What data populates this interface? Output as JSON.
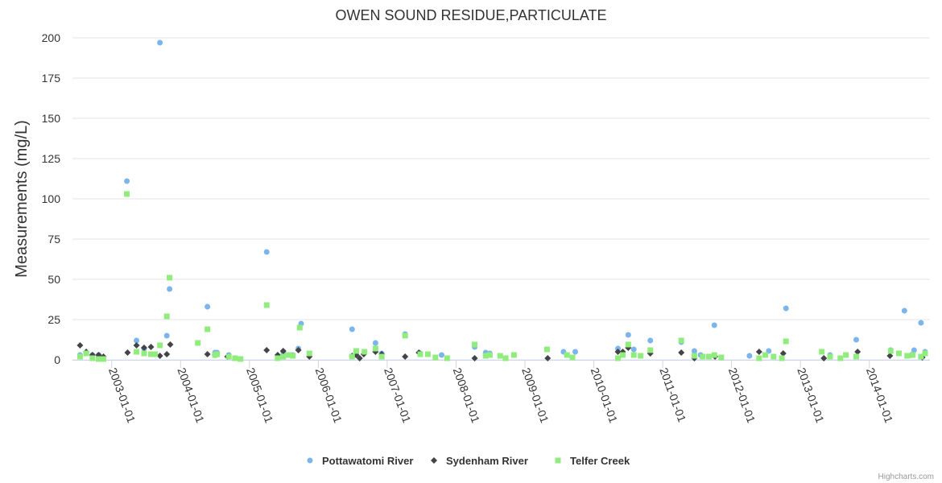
{
  "chart_data": {
    "type": "scatter",
    "title": "OWEN SOUND RESIDUE,PARTICULATE",
    "xlabel": "",
    "ylabel": "Measurements (mg/L)",
    "x_units": "decimal year",
    "xlim": [
      2002.43,
      2014.88
    ],
    "ylim": [
      0,
      200
    ],
    "yticks": [
      0,
      25,
      50,
      75,
      100,
      125,
      150,
      175,
      200
    ],
    "xticks": [
      {
        "value": 2003,
        "label": "2003-01-01"
      },
      {
        "value": 2004,
        "label": "2004-01-01"
      },
      {
        "value": 2005,
        "label": "2005-01-01"
      },
      {
        "value": 2006,
        "label": "2006-01-01"
      },
      {
        "value": 2007,
        "label": "2007-01-01"
      },
      {
        "value": 2008,
        "label": "2008-01-01"
      },
      {
        "value": 2009,
        "label": "2009-01-01"
      },
      {
        "value": 2010,
        "label": "2010-01-01"
      },
      {
        "value": 2011,
        "label": "2011-01-01"
      },
      {
        "value": 2012,
        "label": "2012-01-01"
      },
      {
        "value": 2013,
        "label": "2013-01-01"
      },
      {
        "value": 2014,
        "label": "2014-01-01"
      }
    ],
    "grid": true,
    "legend_position": "bottom-center",
    "series": [
      {
        "name": "Pottawatomi River",
        "color": "#7cb5ec",
        "marker": "circle",
        "points": [
          [
            2002.54,
            3
          ],
          [
            2002.63,
            4
          ],
          [
            2002.72,
            3
          ],
          [
            2002.81,
            3
          ],
          [
            2003.22,
            111
          ],
          [
            2003.36,
            12
          ],
          [
            2003.47,
            7
          ],
          [
            2003.7,
            197
          ],
          [
            2003.8,
            15
          ],
          [
            2003.84,
            44
          ],
          [
            2004.39,
            33
          ],
          [
            2004.5,
            4.5
          ],
          [
            2004.53,
            4.5
          ],
          [
            2004.7,
            3
          ],
          [
            2005.25,
            67
          ],
          [
            2005.49,
            5
          ],
          [
            2005.63,
            3
          ],
          [
            2005.71,
            7
          ],
          [
            2005.75,
            22.5
          ],
          [
            2006.49,
            19
          ],
          [
            2006.55,
            3
          ],
          [
            2006.83,
            10.5
          ],
          [
            2006.92,
            4
          ],
          [
            2007.26,
            16
          ],
          [
            2007.48,
            4
          ],
          [
            2007.79,
            3
          ],
          [
            2008.27,
            8
          ],
          [
            2008.43,
            4.5
          ],
          [
            2008.49,
            4
          ],
          [
            2009.56,
            5
          ],
          [
            2009.73,
            5
          ],
          [
            2010.35,
            7
          ],
          [
            2010.5,
            15.5
          ],
          [
            2010.58,
            6.5
          ],
          [
            2010.82,
            12
          ],
          [
            2011.27,
            11
          ],
          [
            2011.46,
            5.5
          ],
          [
            2011.55,
            3
          ],
          [
            2011.75,
            21.5
          ],
          [
            2012.26,
            2.5
          ],
          [
            2012.54,
            5.5
          ],
          [
            2012.79,
            32
          ],
          [
            2013.43,
            3
          ],
          [
            2013.81,
            12.5
          ],
          [
            2014.31,
            6
          ],
          [
            2014.51,
            30.5
          ],
          [
            2014.65,
            6
          ],
          [
            2014.75,
            23
          ],
          [
            2014.81,
            5
          ]
        ]
      },
      {
        "name": "Sydenham River",
        "color": "#434348",
        "marker": "diamond",
        "points": [
          [
            2002.54,
            9
          ],
          [
            2002.63,
            5
          ],
          [
            2002.72,
            3
          ],
          [
            2002.81,
            3
          ],
          [
            2002.88,
            2
          ],
          [
            2003.23,
            4.5
          ],
          [
            2003.36,
            9
          ],
          [
            2003.47,
            7.5
          ],
          [
            2003.57,
            8
          ],
          [
            2003.7,
            2.5
          ],
          [
            2003.8,
            3.5
          ],
          [
            2003.85,
            9.5
          ],
          [
            2004.39,
            3.5
          ],
          [
            2004.5,
            3
          ],
          [
            2004.68,
            2
          ],
          [
            2005.25,
            6
          ],
          [
            2005.41,
            3
          ],
          [
            2005.49,
            5.5
          ],
          [
            2005.71,
            6
          ],
          [
            2005.87,
            2
          ],
          [
            2006.49,
            2.5
          ],
          [
            2006.55,
            3
          ],
          [
            2006.6,
            1
          ],
          [
            2006.66,
            3.5
          ],
          [
            2006.83,
            5
          ],
          [
            2006.92,
            3.5
          ],
          [
            2007.26,
            2
          ],
          [
            2007.46,
            4.5
          ],
          [
            2008.27,
            1
          ],
          [
            2009.33,
            1
          ],
          [
            2010.35,
            5
          ],
          [
            2010.42,
            5
          ],
          [
            2010.5,
            7.5
          ],
          [
            2010.82,
            4
          ],
          [
            2011.27,
            4.5
          ],
          [
            2011.46,
            1
          ],
          [
            2011.76,
            2
          ],
          [
            2012.4,
            5
          ],
          [
            2012.75,
            4
          ],
          [
            2013.34,
            1
          ],
          [
            2013.83,
            5
          ],
          [
            2014.3,
            2.5
          ],
          [
            2014.61,
            3
          ],
          [
            2014.77,
            1.5
          ]
        ]
      },
      {
        "name": "Telfer Creek",
        "color": "#90ed7d",
        "marker": "square",
        "points": [
          [
            2002.54,
            2
          ],
          [
            2002.63,
            4
          ],
          [
            2002.72,
            1
          ],
          [
            2002.81,
            0.5
          ],
          [
            2002.88,
            0.5
          ],
          [
            2003.22,
            103
          ],
          [
            2003.36,
            5
          ],
          [
            2003.47,
            4
          ],
          [
            2003.57,
            3.5
          ],
          [
            2003.63,
            3.5
          ],
          [
            2003.7,
            9
          ],
          [
            2003.8,
            27
          ],
          [
            2003.84,
            51
          ],
          [
            2004.25,
            10.5
          ],
          [
            2004.39,
            19
          ],
          [
            2004.5,
            3
          ],
          [
            2004.53,
            3.5
          ],
          [
            2004.7,
            2
          ],
          [
            2004.79,
            1
          ],
          [
            2004.87,
            0.5
          ],
          [
            2005.25,
            34
          ],
          [
            2005.41,
            1
          ],
          [
            2005.49,
            2
          ],
          [
            2005.57,
            3
          ],
          [
            2005.63,
            2.5
          ],
          [
            2005.73,
            20
          ],
          [
            2005.87,
            4
          ],
          [
            2006.49,
            2
          ],
          [
            2006.55,
            5.5
          ],
          [
            2006.67,
            5
          ],
          [
            2006.83,
            7
          ],
          [
            2006.92,
            2
          ],
          [
            2007.26,
            15
          ],
          [
            2007.48,
            3.5
          ],
          [
            2007.59,
            3.5
          ],
          [
            2007.7,
            1.5
          ],
          [
            2007.87,
            1
          ],
          [
            2008.27,
            9.5
          ],
          [
            2008.43,
            2.5
          ],
          [
            2008.49,
            3
          ],
          [
            2008.64,
            2.5
          ],
          [
            2008.72,
            1
          ],
          [
            2008.84,
            3
          ],
          [
            2009.32,
            6.5
          ],
          [
            2009.61,
            3
          ],
          [
            2009.69,
            1.5
          ],
          [
            2010.35,
            1
          ],
          [
            2010.42,
            3
          ],
          [
            2010.5,
            9.5
          ],
          [
            2010.58,
            3
          ],
          [
            2010.68,
            2.5
          ],
          [
            2010.82,
            6
          ],
          [
            2011.27,
            12
          ],
          [
            2011.46,
            2.5
          ],
          [
            2011.58,
            2
          ],
          [
            2011.67,
            2
          ],
          [
            2011.75,
            3
          ],
          [
            2011.85,
            1.5
          ],
          [
            2012.4,
            1
          ],
          [
            2012.49,
            3
          ],
          [
            2012.61,
            2
          ],
          [
            2012.73,
            1
          ],
          [
            2012.79,
            11.5
          ],
          [
            2013.31,
            5
          ],
          [
            2013.43,
            2
          ],
          [
            2013.58,
            1
          ],
          [
            2013.66,
            3
          ],
          [
            2013.81,
            2
          ],
          [
            2014.31,
            5.5
          ],
          [
            2014.43,
            4
          ],
          [
            2014.55,
            2.5
          ],
          [
            2014.63,
            3
          ],
          [
            2014.75,
            2
          ],
          [
            2014.81,
            4
          ]
        ]
      }
    ]
  },
  "credits": "Highcharts.com"
}
